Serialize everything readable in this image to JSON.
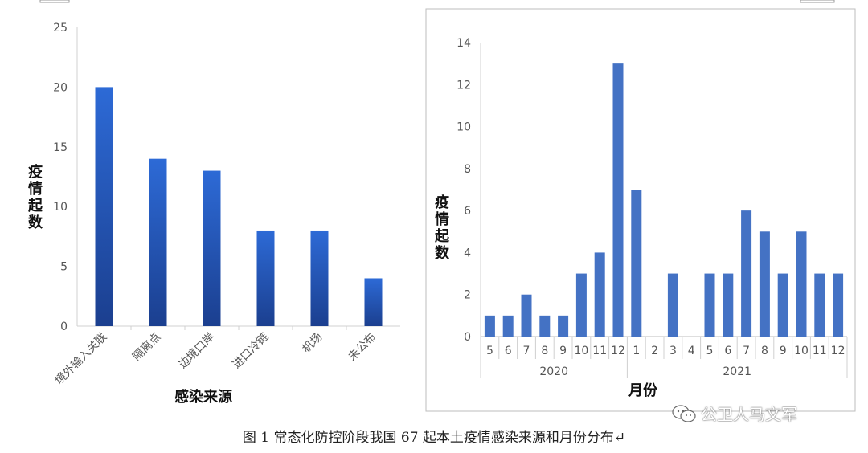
{
  "caption": "图 1 常态化防控阶段我国 67 起本土疫情感染来源和月份分布↵",
  "watermark": {
    "text": "公卫人马文军",
    "icon": "wechat-icon"
  },
  "chart_data": [
    {
      "type": "bar",
      "title": "",
      "xlabel": "感染来源",
      "ylabel": "疫情起数",
      "categories": [
        "境外输入关联",
        "隔离点",
        "边境口岸",
        "进口冷链",
        "机场",
        "未公布"
      ],
      "values": [
        20,
        14,
        13,
        8,
        8,
        4
      ],
      "ylim": [
        0,
        25
      ],
      "yticks": [
        0,
        5,
        10,
        15,
        20,
        25
      ],
      "bar_color": "#2d62c8",
      "bar_color_dark": "#1b3f8f",
      "grid": false,
      "legend": "none"
    },
    {
      "type": "bar",
      "title": "",
      "xlabel": "月份",
      "ylabel": "疫情起数",
      "categories": [
        "5",
        "6",
        "7",
        "8",
        "9",
        "10",
        "11",
        "12",
        "1",
        "2",
        "3",
        "4",
        "5",
        "6",
        "7",
        "8",
        "9",
        "10",
        "11",
        "12"
      ],
      "groups": [
        {
          "label": "2020",
          "span": 8
        },
        {
          "label": "2021",
          "span": 12
        }
      ],
      "values": [
        1,
        1,
        2,
        1,
        1,
        3,
        4,
        13,
        7,
        0,
        3,
        0,
        3,
        3,
        6,
        5,
        3,
        5,
        3,
        3
      ],
      "ylim": [
        0,
        14
      ],
      "yticks": [
        0,
        2,
        4,
        6,
        8,
        10,
        12,
        14
      ],
      "bar_color": "#4472c4",
      "grid": false,
      "legend": "none"
    }
  ]
}
